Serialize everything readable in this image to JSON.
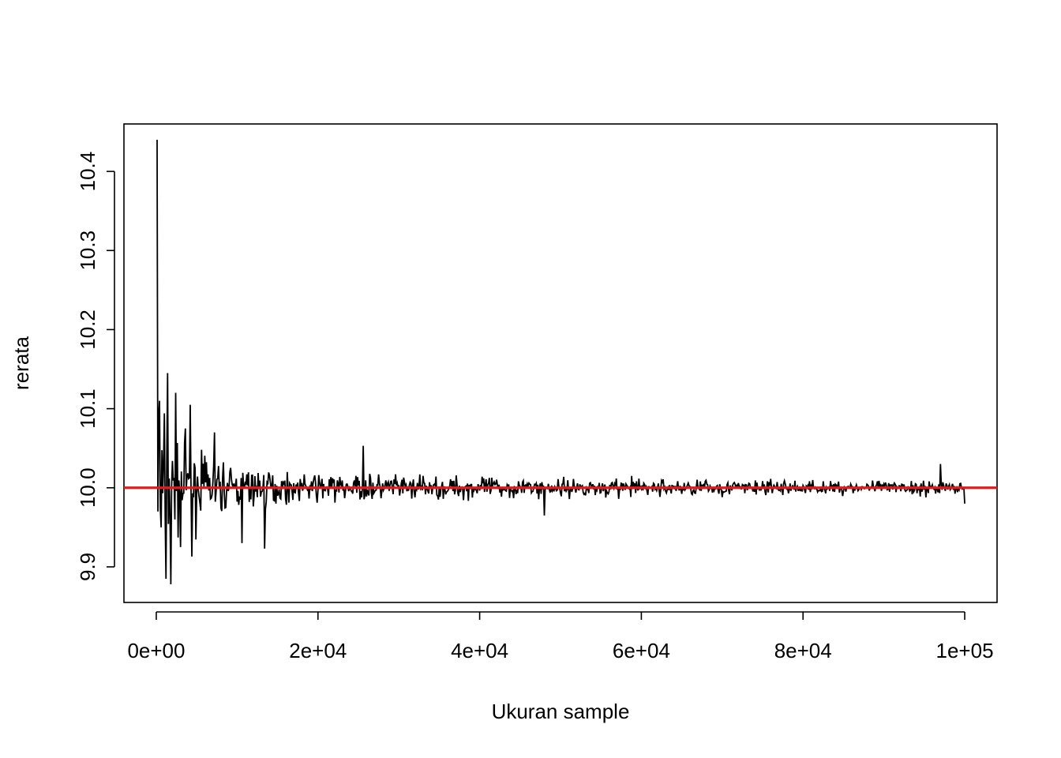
{
  "chart_data": {
    "type": "line",
    "title": "",
    "xlabel": "Ukuran sample",
    "ylabel": "rerata",
    "xlim": [
      -4000,
      104000
    ],
    "ylim": [
      9.855,
      10.46
    ],
    "x_ticks": [
      0,
      20000,
      40000,
      60000,
      80000,
      100000
    ],
    "x_tick_labels": [
      "0e+00",
      "2e+04",
      "4e+04",
      "6e+04",
      "8e+04",
      "1e+05"
    ],
    "y_ticks": [
      9.9,
      10.0,
      10.1,
      10.2,
      10.3,
      10.4
    ],
    "y_tick_labels": [
      "9.9",
      "10.0",
      "10.1",
      "10.2",
      "10.3",
      "10.4"
    ],
    "grid": false,
    "series": [
      {
        "color": "#000000",
        "x_start": 100,
        "x_step": 100,
        "noise_seed": 7,
        "points_count": 1000,
        "peak_points": [
          [
            100,
            10.44
          ],
          [
            200,
            9.97
          ],
          [
            300,
            10.09
          ],
          [
            400,
            10.11
          ],
          [
            600,
            9.95
          ],
          [
            1200,
            9.885
          ],
          [
            1400,
            10.145
          ],
          [
            1800,
            9.878
          ],
          [
            2400,
            10.12
          ],
          [
            3000,
            9.925
          ],
          [
            3600,
            10.075
          ],
          [
            4200,
            10.105
          ],
          [
            4400,
            9.913
          ],
          [
            5600,
            10.048
          ],
          [
            7200,
            10.07
          ],
          [
            10600,
            9.93
          ],
          [
            13400,
            9.923
          ],
          [
            25600,
            10.053
          ],
          [
            48000,
            9.965
          ],
          [
            97000,
            10.03
          ],
          [
            100000,
            9.98
          ]
        ],
        "mean": 10.0
      },
      {
        "color": "#e41a1c",
        "type": "hline",
        "y": 10.0
      }
    ]
  }
}
